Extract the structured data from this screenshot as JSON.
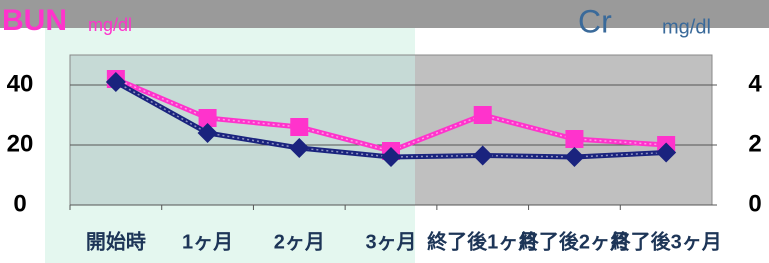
{
  "chart_data": {
    "type": "line",
    "categories": [
      "開始時",
      "1ヶ月",
      "2ヶ月",
      "3ヶ月",
      "終了後1ヶ月",
      "終了後2ヶ月",
      "終了後3ヶ月"
    ],
    "y_unit": "mg/dl",
    "y2_unit": "mg/dl",
    "series": [
      {
        "name": "BUN",
        "color": "#ff33cc",
        "marker": "square",
        "values": [
          42,
          29,
          26,
          18,
          30,
          22,
          20
        ]
      },
      {
        "name": "Cr",
        "color": "#1a237e",
        "marker": "diamond",
        "axis": "y2",
        "values": [
          4.1,
          2.4,
          1.9,
          1.6,
          1.65,
          1.6,
          1.75
        ]
      }
    ],
    "ylim": [
      0,
      50
    ],
    "yticks": [
      0,
      20,
      40
    ],
    "y2lim": [
      0,
      5
    ],
    "y2ticks": [
      0,
      2,
      4
    ],
    "grid": true
  }
}
